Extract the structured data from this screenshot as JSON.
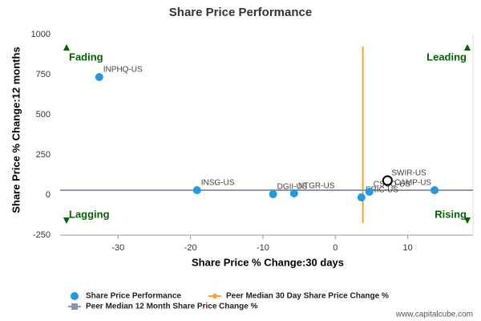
{
  "chart_data": {
    "type": "scatter",
    "title": "Share Price Performance",
    "xlabel": "Share Price % Change:30 days",
    "ylabel": "Share Price % Change:12 months",
    "xlim": [
      -38,
      19
    ],
    "ylim": [
      -250,
      1000
    ],
    "xticks": [
      -30,
      -20,
      -10,
      0,
      10
    ],
    "yticks": [
      -250,
      0,
      250,
      500,
      750,
      1000
    ],
    "quadrants": {
      "top_left": "Fading",
      "top_right": "Leading",
      "bottom_left": "Lagging",
      "bottom_right": "Rising"
    },
    "series": [
      {
        "name": "Share Price Performance",
        "color": "#1e9be8",
        "labels": [
          "INPHQ-US",
          "INSG-US",
          "DGII-US",
          "NTGR-US",
          "ERIC-US",
          "CSCO-US",
          "SWIR-US",
          "CAMP-US"
        ],
        "x": [
          -32.6,
          -19.1,
          -8.6,
          -5.7,
          3.6,
          4.7,
          7.2,
          13.7
        ],
        "values": [
          735,
          30,
          5,
          10,
          -15,
          20,
          90,
          30
        ]
      }
    ],
    "highlight": "SWIR-US",
    "reference_lines": [
      {
        "name": "Peer Median 30 Day Share Price Change %",
        "color": "#f5a623",
        "axis": "x",
        "value": 3.8
      },
      {
        "name": "Peer Median 12 Month Share Price Change %",
        "color": "#8c9aa8",
        "axis": "y",
        "value": 30
      }
    ],
    "credit": "www.capitalcube.com"
  }
}
